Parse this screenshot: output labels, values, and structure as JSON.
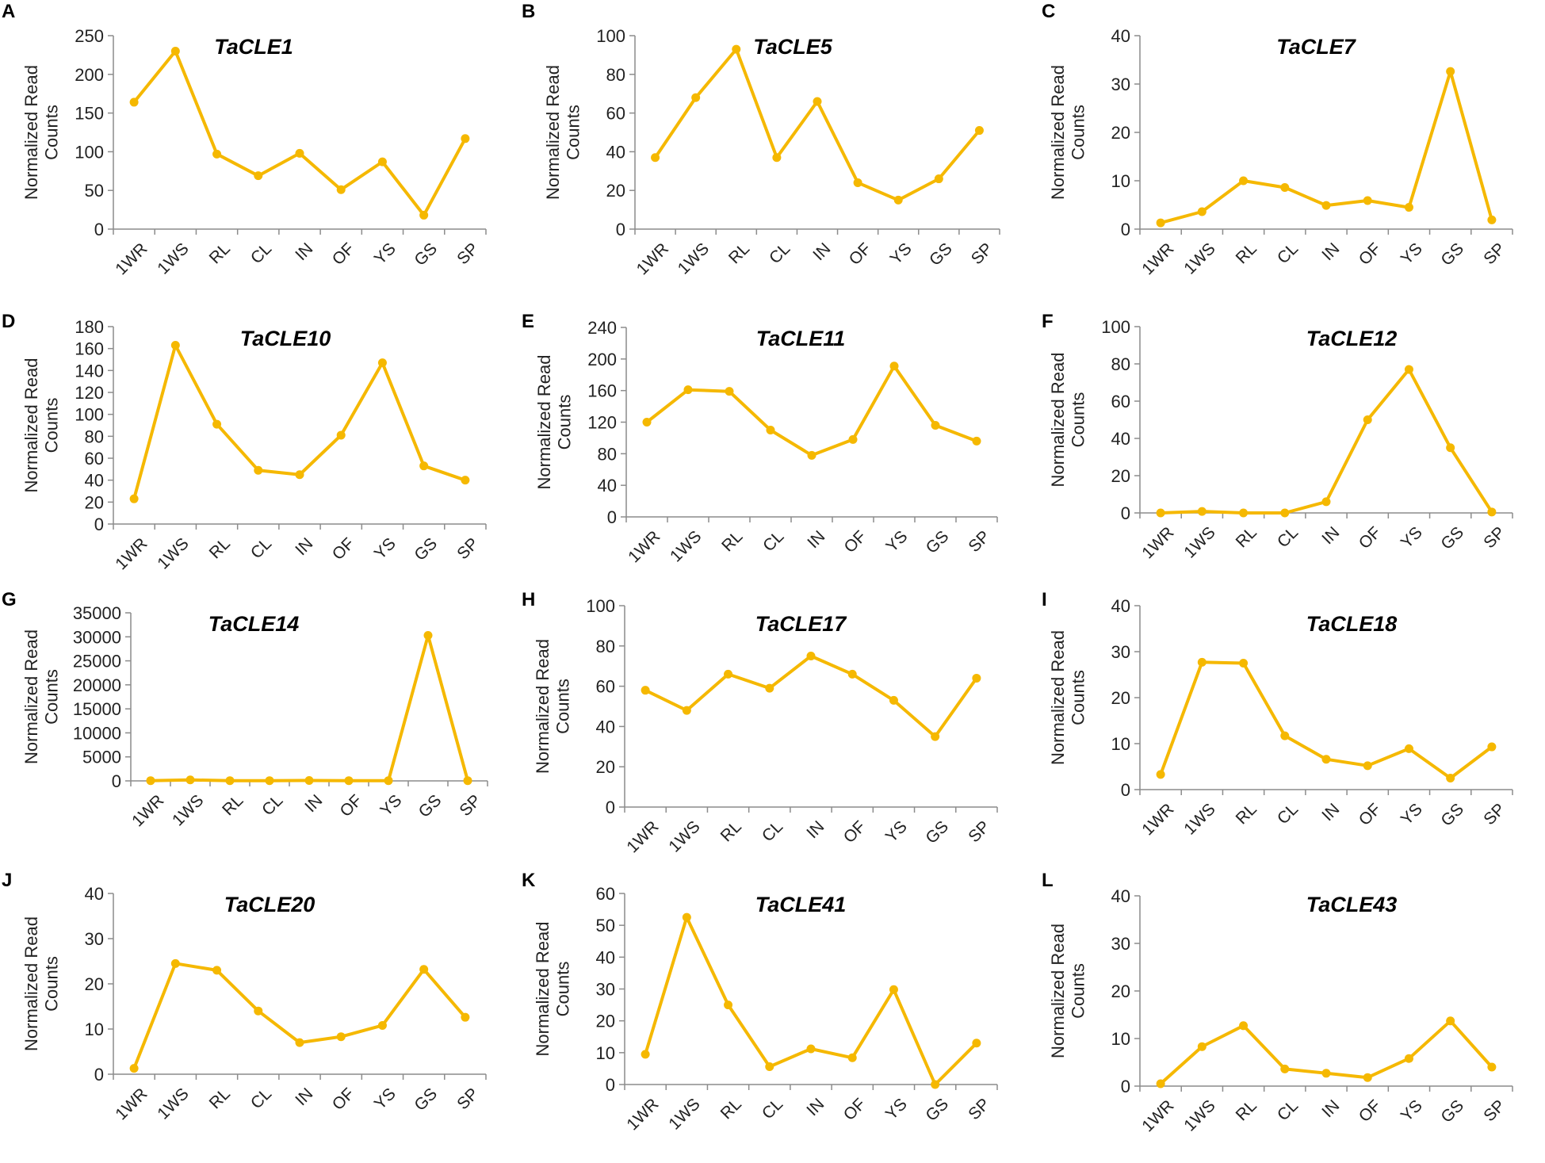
{
  "style": {
    "line_color": "#f5b800"
  },
  "chart_data": [
    {
      "letter": "A",
      "type": "line",
      "title": "TaCLE1",
      "ylabel": [
        "Normalized Read",
        "Counts"
      ],
      "ylim": [
        0,
        250
      ],
      "yticks": [
        0,
        50,
        100,
        150,
        200,
        250
      ],
      "categories": [
        "1WR",
        "1WS",
        "RL",
        "CL",
        "IN",
        "OF",
        "YS",
        "GS",
        "SP"
      ],
      "values": [
        164,
        230,
        97,
        69,
        98,
        51,
        87,
        18,
        117
      ]
    },
    {
      "letter": "B",
      "type": "line",
      "title": "TaCLE5",
      "ylabel": [
        "Normalized Read",
        "Counts"
      ],
      "ylim": [
        0,
        100
      ],
      "yticks": [
        0,
        20,
        40,
        60,
        80,
        100
      ],
      "categories": [
        "1WR",
        "1WS",
        "RL",
        "CL",
        "IN",
        "OF",
        "YS",
        "GS",
        "SP"
      ],
      "values": [
        37,
        68,
        93,
        37,
        66,
        24,
        15,
        26,
        51
      ]
    },
    {
      "letter": "C",
      "type": "line",
      "title": "TaCLE7",
      "ylabel": [
        "Normalized Read",
        "Counts"
      ],
      "ylim": [
        0,
        40
      ],
      "yticks": [
        0,
        10,
        20,
        30,
        40
      ],
      "categories": [
        "1WR",
        "1WS",
        "RL",
        "CL",
        "IN",
        "OF",
        "YS",
        "GS",
        "SP"
      ],
      "values": [
        1.3,
        3.6,
        10,
        8.6,
        4.9,
        5.9,
        4.5,
        32.6,
        1.9
      ]
    },
    {
      "letter": "D",
      "type": "line",
      "title": "TaCLE10",
      "ylabel": [
        "Normalized Read",
        "Counts"
      ],
      "ylim": [
        0,
        180
      ],
      "yticks": [
        0,
        20,
        40,
        60,
        80,
        100,
        120,
        140,
        160,
        180
      ],
      "categories": [
        "1WR",
        "1WS",
        "RL",
        "CL",
        "IN",
        "OF",
        "YS",
        "GS",
        "SP"
      ],
      "values": [
        23,
        163,
        91,
        49,
        45,
        81,
        147,
        53,
        40
      ]
    },
    {
      "letter": "E",
      "type": "line",
      "title": "TaCLE11",
      "ylabel": [
        "Normalized Read",
        "Counts"
      ],
      "ylim": [
        0,
        240
      ],
      "yticks": [
        0,
        40,
        80,
        120,
        160,
        200,
        240
      ],
      "categories": [
        "1WR",
        "1WS",
        "RL",
        "CL",
        "IN",
        "OF",
        "YS",
        "GS",
        "SP"
      ],
      "values": [
        120,
        161,
        159,
        110,
        78,
        98,
        191,
        116,
        96
      ]
    },
    {
      "letter": "F",
      "type": "line",
      "title": "TaCLE12",
      "ylabel": [
        "Normalized Read",
        "Counts"
      ],
      "ylim": [
        0,
        100
      ],
      "yticks": [
        0,
        20,
        40,
        60,
        80,
        100
      ],
      "categories": [
        "1WR",
        "1WS",
        "RL",
        "CL",
        "IN",
        "OF",
        "YS",
        "GS",
        "SP"
      ],
      "values": [
        0,
        0.8,
        0,
        0,
        6,
        50,
        77,
        35,
        0.5
      ]
    },
    {
      "letter": "G",
      "type": "line",
      "title": "TaCLE14",
      "ylabel": [
        "Normalized Read",
        "Counts"
      ],
      "ylim": [
        0,
        35000
      ],
      "yticks": [
        0,
        5000,
        10000,
        15000,
        20000,
        25000,
        30000,
        35000
      ],
      "categories": [
        "1WR",
        "1WS",
        "RL",
        "CL",
        "IN",
        "OF",
        "YS",
        "GS",
        "SP"
      ],
      "values": [
        50,
        200,
        50,
        50,
        80,
        50,
        50,
        30300,
        50
      ]
    },
    {
      "letter": "H",
      "type": "line",
      "title": "TaCLE17",
      "ylabel": [
        "Normalized Read",
        "Counts"
      ],
      "ylim": [
        0,
        100
      ],
      "yticks": [
        0,
        20,
        40,
        60,
        80,
        100
      ],
      "categories": [
        "1WR",
        "1WS",
        "RL",
        "CL",
        "IN",
        "OF",
        "YS",
        "GS",
        "SP"
      ],
      "values": [
        58,
        48,
        66,
        59,
        75,
        66,
        53,
        35,
        64
      ]
    },
    {
      "letter": "I",
      "type": "line",
      "title": "TaCLE18",
      "ylabel": [
        "Normalized Read",
        "Counts"
      ],
      "ylim": [
        0,
        40
      ],
      "yticks": [
        0,
        10,
        20,
        30,
        40
      ],
      "categories": [
        "1WR",
        "1WS",
        "RL",
        "CL",
        "IN",
        "OF",
        "YS",
        "GS",
        "SP"
      ],
      "values": [
        3.3,
        27.7,
        27.5,
        11.7,
        6.6,
        5.2,
        8.9,
        2.5,
        9.3
      ]
    },
    {
      "letter": "J",
      "type": "line",
      "title": "TaCLE20",
      "ylabel": [
        "Normalized Read",
        "Counts"
      ],
      "ylim": [
        0,
        40
      ],
      "yticks": [
        0,
        10,
        20,
        30,
        40
      ],
      "categories": [
        "1WR",
        "1WS",
        "RL",
        "CL",
        "IN",
        "OF",
        "YS",
        "GS",
        "SP"
      ],
      "values": [
        1.3,
        24.5,
        23,
        14,
        7,
        8.3,
        10.8,
        23.2,
        12.6
      ]
    },
    {
      "letter": "K",
      "type": "line",
      "title": "TaCLE41",
      "ylabel": [
        "Normalized Read",
        "Counts"
      ],
      "ylim": [
        0,
        60
      ],
      "yticks": [
        0,
        10,
        20,
        30,
        40,
        50,
        60
      ],
      "categories": [
        "1WR",
        "1WS",
        "RL",
        "CL",
        "IN",
        "OF",
        "YS",
        "GS",
        "SP"
      ],
      "values": [
        9.5,
        52.5,
        25,
        5.6,
        11.2,
        8.4,
        29.8,
        0,
        13
      ]
    },
    {
      "letter": "L",
      "type": "line",
      "title": "TaCLE43",
      "ylabel": [
        "Normalized Read",
        "Counts"
      ],
      "ylim": [
        0,
        40
      ],
      "yticks": [
        0,
        10,
        20,
        30,
        40
      ],
      "categories": [
        "1WR",
        "1WS",
        "RL",
        "CL",
        "IN",
        "OF",
        "YS",
        "GS",
        "SP"
      ],
      "values": [
        0.5,
        8.3,
        12.7,
        3.6,
        2.7,
        1.8,
        5.8,
        13.7,
        4
      ]
    }
  ]
}
